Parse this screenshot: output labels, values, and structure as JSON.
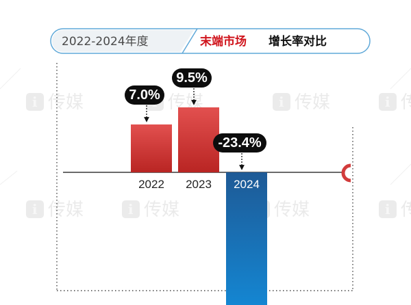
{
  "header": {
    "period": "2022-2024年度",
    "highlight": "末端市场",
    "subject": "增长率对比"
  },
  "watermark": {
    "text": "传媒",
    "icon": "i"
  },
  "colors": {
    "positive_top": "#e2504f",
    "positive_bottom": "#b92523",
    "negative_top": "#1e5a96",
    "negative_bottom": "#1486d2",
    "accent_red": "#d0141c",
    "pill_border": "#5fa8d8",
    "callout_bg": "#0d0d0d"
  },
  "chart_data": {
    "type": "bar",
    "categories": [
      "2022",
      "2023",
      "2024"
    ],
    "values": [
      7.0,
      9.5,
      -23.4
    ],
    "value_labels": [
      "7.0%",
      "9.5%",
      "-23.4%"
    ],
    "unit": "%",
    "title": "",
    "xlabel": "",
    "ylabel": "",
    "grid": false,
    "legend": "none"
  }
}
